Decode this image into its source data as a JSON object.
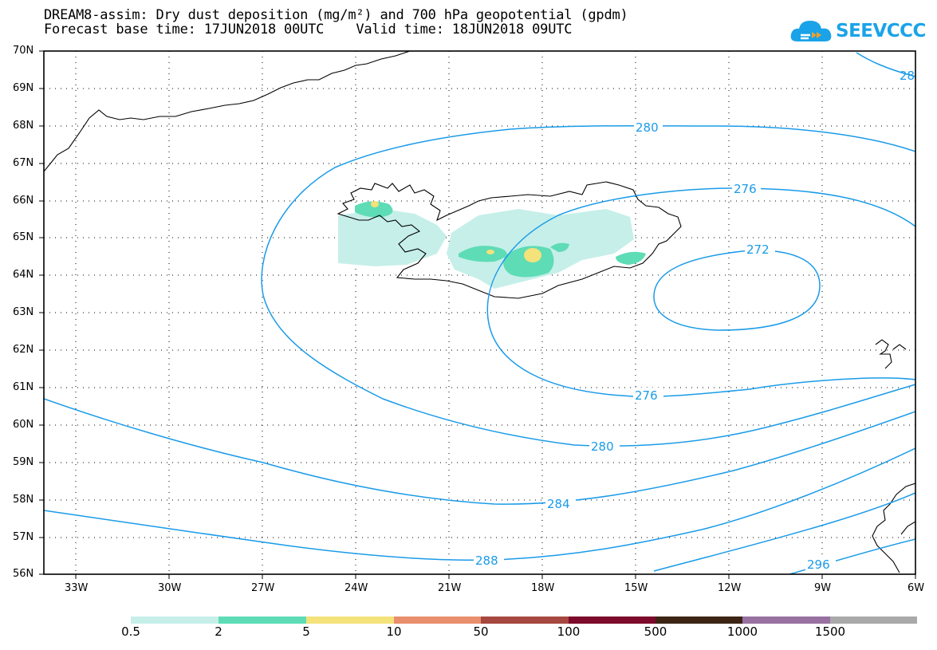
{
  "header": {
    "title_line1": "DREAM8-assim: Dry dust deposition (mg/m²) and 700 hPa geopotential (gpdm)",
    "title_line2": "Forecast base time: 17JUN2018 00UTC    Valid time: 18JUN2018 09UTC"
  },
  "logo": {
    "text": "SEEVCCC",
    "icon": "cloud-icon",
    "color": "#1aa3e8"
  },
  "map": {
    "lat_labels": [
      "70N",
      "69N",
      "68N",
      "67N",
      "66N",
      "65N",
      "64N",
      "63N",
      "62N",
      "61N",
      "60N",
      "59N",
      "58N",
      "57N",
      "56N"
    ],
    "lon_labels": [
      "33W",
      "30W",
      "27W",
      "24W",
      "21W",
      "18W",
      "15W",
      "12W",
      "9W",
      "6W"
    ],
    "contour_color": "#1a9be8",
    "contour_labels": {
      "c280_top": "280",
      "c276_top": "276",
      "c272": "272",
      "c276_bottom": "276",
      "c280_bottom": "280",
      "c284": "284",
      "c288": "288",
      "c296": "296",
      "c28_corner": "28"
    }
  },
  "legend": {
    "labels": [
      "0.5",
      "2",
      "5",
      "10",
      "50",
      "100",
      "500",
      "1000",
      "1500"
    ],
    "colors": [
      "#c6efe9",
      "#5edcb6",
      "#f4e27a",
      "#e98f6e",
      "#a6483f",
      "#7d0a2a",
      "#3d2515",
      "#9871a1",
      "#a9a9a9"
    ]
  }
}
